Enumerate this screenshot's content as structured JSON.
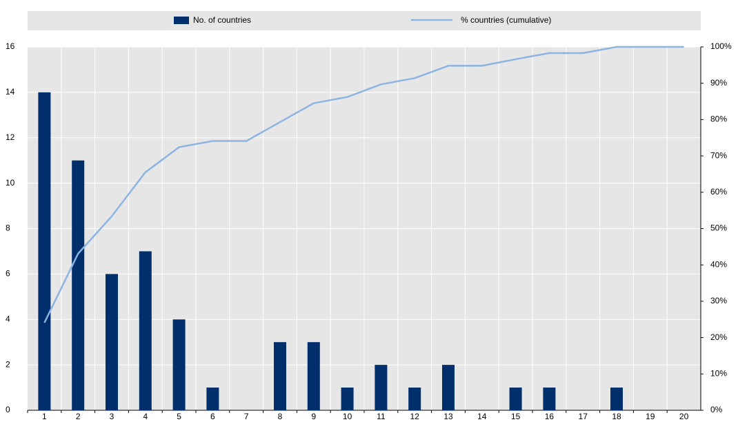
{
  "chart_data": {
    "type": "bar",
    "categories": [
      "1",
      "2",
      "3",
      "4",
      "5",
      "6",
      "7",
      "8",
      "9",
      "10",
      "11",
      "12",
      "13",
      "14",
      "15",
      "16",
      "17",
      "18",
      "19",
      "20"
    ],
    "series": [
      {
        "name": "No. of countries",
        "type": "bar",
        "color": "#002f6c",
        "values": [
          14,
          11,
          6,
          7,
          4,
          1,
          0,
          3,
          3,
          1,
          2,
          1,
          2,
          0,
          1,
          1,
          0,
          1,
          0,
          0
        ]
      },
      {
        "name": "% countries (cumulative)",
        "type": "line",
        "axis": "y2",
        "color": "#8cb4e2",
        "values": [
          24.1,
          43.1,
          53.4,
          65.5,
          72.4,
          74.1,
          74.1,
          79.3,
          84.5,
          86.2,
          89.7,
          91.4,
          94.8,
          94.8,
          96.6,
          98.3,
          98.3,
          100,
          100,
          100
        ]
      }
    ],
    "ylim": [
      0,
      16
    ],
    "yticks": [
      0,
      2,
      4,
      6,
      8,
      10,
      12,
      14,
      16
    ],
    "y2lim": [
      0,
      100
    ],
    "y2ticks": [
      {
        "value": 0,
        "label": "0%"
      },
      {
        "value": 10,
        "label": "10%"
      },
      {
        "value": 20,
        "label": "20%"
      },
      {
        "value": 30,
        "label": "30%"
      },
      {
        "value": 40,
        "label": "40%"
      },
      {
        "value": 50,
        "label": "50%"
      },
      {
        "value": 60,
        "label": "60%"
      },
      {
        "value": 70,
        "label": "70%"
      },
      {
        "value": 80,
        "label": "80%"
      },
      {
        "value": 90,
        "label": "90%"
      },
      {
        "value": 100,
        "label": "100%"
      }
    ],
    "grid": true,
    "legend": "top"
  }
}
